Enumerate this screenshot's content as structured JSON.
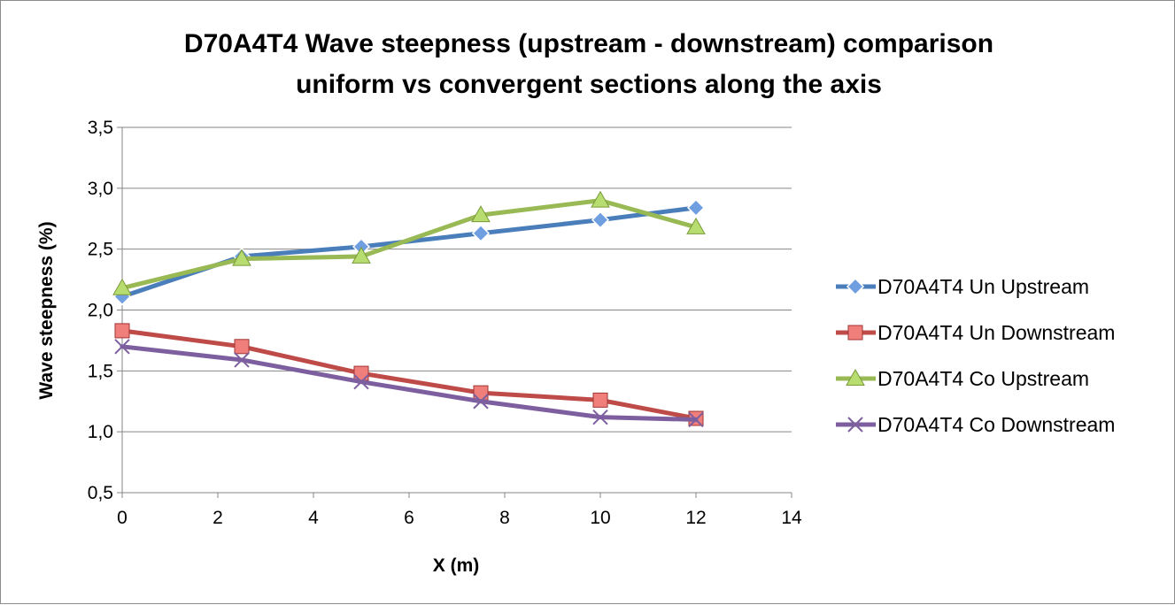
{
  "chart_data": {
    "type": "line",
    "title_lines": [
      "D70A4T4 Wave steepness (upstream - downstream) comparison",
      "uniform vs convergent sections along the axis"
    ],
    "xlabel": "X (m)",
    "ylabel": "Wave steepness (%)",
    "xlim": [
      0,
      14
    ],
    "ylim": [
      0.5,
      3.5
    ],
    "x_ticks": [
      0,
      2,
      4,
      6,
      8,
      10,
      12,
      14
    ],
    "x_tick_labels": [
      "0",
      "2",
      "4",
      "6",
      "8",
      "10",
      "12",
      "14"
    ],
    "y_ticks": [
      0.5,
      1.0,
      1.5,
      2.0,
      2.5,
      3.0,
      3.5
    ],
    "y_tick_labels": [
      "0,5",
      "1,0",
      "1,5",
      "2,0",
      "2,5",
      "3,0",
      "3,5"
    ],
    "grid": "horizontal",
    "legend_position": "right",
    "x": [
      0,
      2.5,
      5,
      7.5,
      10,
      12
    ],
    "series": [
      {
        "name": "D70A4T4 Un Upstream",
        "values": [
          2.11,
          2.44,
          2.52,
          2.63,
          2.74,
          2.84
        ],
        "color": "#4a7ebb",
        "marker": "diamond"
      },
      {
        "name": "D70A4T4 Un Downstream",
        "values": [
          1.83,
          1.7,
          1.48,
          1.32,
          1.26,
          1.11
        ],
        "color": "#be4b48",
        "marker": "square"
      },
      {
        "name": "D70A4T4 Co Upstream",
        "values": [
          2.18,
          2.42,
          2.44,
          2.78,
          2.9,
          2.68
        ],
        "color": "#98b954",
        "marker": "triangle"
      },
      {
        "name": "D70A4T4 Co Downstream",
        "values": [
          1.7,
          1.59,
          1.41,
          1.25,
          1.12,
          1.1
        ],
        "color": "#7d5fa0",
        "marker": "x"
      }
    ]
  }
}
